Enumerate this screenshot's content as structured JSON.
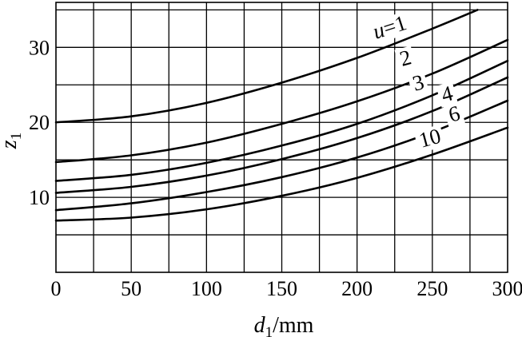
{
  "chart_data": {
    "type": "line",
    "xlabel": {
      "main": "d",
      "sub": "1",
      "unit": "/mm"
    },
    "ylabel": {
      "main": "z",
      "sub": "1"
    },
    "xlim": [
      0,
      300
    ],
    "ylim": [
      0,
      36
    ],
    "x_ticks": [
      0,
      50,
      100,
      150,
      200,
      250,
      300
    ],
    "y_ticks": [
      10,
      20,
      30
    ],
    "x_grid_step": 25,
    "y_grid_step": 5,
    "grid": true,
    "series": [
      {
        "name": "u=1",
        "x": [
          0,
          50,
          100,
          150,
          200,
          250,
          280
        ],
        "y": [
          20,
          20.8,
          22.6,
          25.3,
          28.6,
          32.5,
          35
        ]
      },
      {
        "name": "2",
        "x": [
          0,
          50,
          100,
          150,
          200,
          250,
          300
        ],
        "y": [
          14.7,
          15.6,
          17.3,
          19.8,
          22.8,
          26.5,
          31
        ]
      },
      {
        "name": "3",
        "x": [
          0,
          50,
          100,
          150,
          200,
          250,
          300
        ],
        "y": [
          12.2,
          13,
          14.6,
          16.9,
          19.8,
          23.6,
          28.2
        ]
      },
      {
        "name": "4",
        "x": [
          0,
          50,
          100,
          150,
          200,
          250,
          300
        ],
        "y": [
          10.6,
          11.4,
          12.9,
          15.1,
          17.9,
          21.5,
          26
        ]
      },
      {
        "name": "6",
        "x": [
          0,
          50,
          100,
          150,
          200,
          250,
          300
        ],
        "y": [
          8.3,
          9.2,
          10.7,
          12.7,
          15.3,
          18.7,
          22.9
        ]
      },
      {
        "name": "10",
        "x": [
          0,
          50,
          100,
          150,
          200,
          250,
          300
        ],
        "y": [
          6.9,
          7.3,
          8.4,
          10.2,
          12.6,
          15.7,
          19.3
        ]
      }
    ]
  }
}
